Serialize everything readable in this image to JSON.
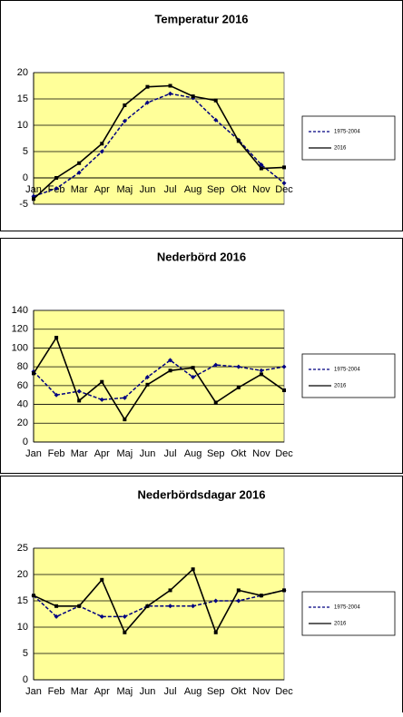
{
  "chart_data": [
    {
      "type": "line",
      "title": "Temperatur 2016",
      "categories": [
        "Jan",
        "Feb",
        "Mar",
        "Apr",
        "Maj",
        "Jun",
        "Jul",
        "Aug",
        "Sep",
        "Okt",
        "Nov",
        "Dec"
      ],
      "series": [
        {
          "name": "1975-2004",
          "color": "#000080",
          "values": [
            -3.5,
            -2,
            1,
            5,
            10.8,
            14.3,
            16,
            15.2,
            11,
            7.2,
            2.5,
            -1
          ]
        },
        {
          "name": "2016",
          "color": "#000000",
          "values": [
            -4,
            0,
            2.8,
            6.5,
            13.8,
            17.3,
            17.5,
            15.5,
            14.7,
            7,
            1.8,
            2
          ]
        }
      ],
      "ylim": [
        -5,
        20
      ],
      "yticks": [
        -5,
        0,
        5,
        10,
        15,
        20
      ],
      "grid": true,
      "legend": "right"
    },
    {
      "type": "line",
      "title": "Nederbörd 2016",
      "categories": [
        "Jan",
        "Feb",
        "Mar",
        "Apr",
        "Maj",
        "Jun",
        "Jul",
        "Aug",
        "Sep",
        "Okt",
        "Nov",
        "Dec"
      ],
      "series": [
        {
          "name": "1975-2004",
          "color": "#000080",
          "values": [
            75,
            50,
            54,
            45,
            47,
            69,
            87,
            69,
            82,
            80,
            76,
            80
          ]
        },
        {
          "name": "2016",
          "color": "#000000",
          "values": [
            73,
            111,
            44,
            64,
            24,
            61,
            76,
            79,
            42,
            58,
            72,
            55
          ]
        }
      ],
      "ylim": [
        0,
        140
      ],
      "yticks": [
        0,
        20,
        40,
        60,
        80,
        100,
        120,
        140
      ],
      "grid": true,
      "legend": "right"
    },
    {
      "type": "line",
      "title": "Nederbördsdagar 2016",
      "categories": [
        "Jan",
        "Feb",
        "Mar",
        "Apr",
        "Maj",
        "Jun",
        "Jul",
        "Aug",
        "Sep",
        "Okt",
        "Nov",
        "Dec"
      ],
      "series": [
        {
          "name": "1975-2004",
          "color": "#000080",
          "values": [
            16,
            12,
            14,
            12,
            12,
            14,
            14,
            14,
            15,
            15,
            16,
            17
          ]
        },
        {
          "name": "2016",
          "color": "#000000",
          "values": [
            16,
            14,
            14,
            19,
            9,
            14,
            17,
            21,
            9,
            17,
            16,
            17
          ]
        }
      ],
      "ylim": [
        0,
        25
      ],
      "yticks": [
        0,
        5,
        10,
        15,
        20,
        25
      ],
      "grid": true,
      "legend": "right"
    }
  ]
}
